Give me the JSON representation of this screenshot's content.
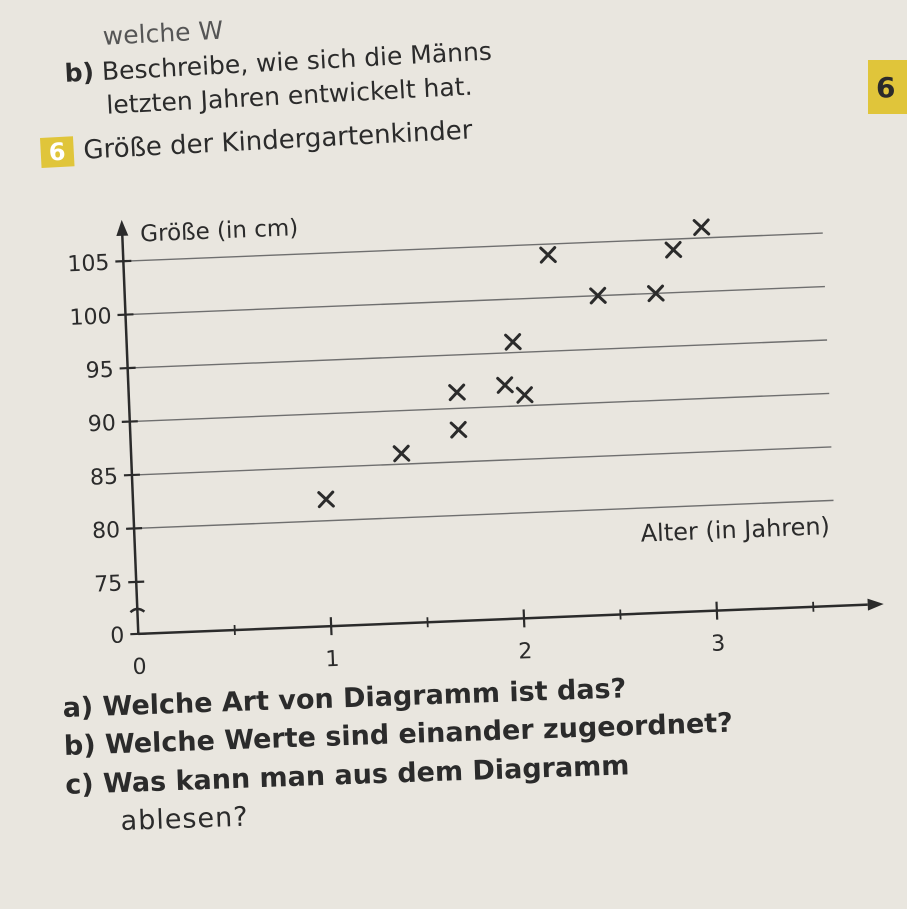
{
  "previous_task": {
    "line_top": "welche W",
    "label": "b)",
    "line1": "Beschreibe, wie sich die Männs",
    "line2": "letzten Jahren entwickelt hat."
  },
  "page_badge": "6",
  "task": {
    "number": "6",
    "title": "Größe der Kindergartenkinder"
  },
  "chart_data": {
    "type": "scatter",
    "title": "Größe der Kindergartenkinder",
    "xlabel": "Alter (in Jahren)",
    "ylabel": "Größe (in cm)",
    "x_ticks": [
      "0",
      "1",
      "2",
      "3"
    ],
    "y_ticks": [
      "0",
      "75",
      "80",
      "85",
      "90",
      "95",
      "100",
      "105"
    ],
    "y_axis_break": true,
    "xlim": [
      0,
      3.6
    ],
    "ylim": [
      75,
      107
    ],
    "marker": "×",
    "grid": "horizontal",
    "points": [
      {
        "x": 1.0,
        "y": 82
      },
      {
        "x": 1.4,
        "y": 86
      },
      {
        "x": 1.7,
        "y": 88
      },
      {
        "x": 1.7,
        "y": 91.5
      },
      {
        "x": 1.95,
        "y": 92
      },
      {
        "x": 2.05,
        "y": 91
      },
      {
        "x": 2.0,
        "y": 96
      },
      {
        "x": 2.2,
        "y": 104
      },
      {
        "x": 2.45,
        "y": 100
      },
      {
        "x": 2.75,
        "y": 100
      },
      {
        "x": 2.85,
        "y": 104
      },
      {
        "x": 3.0,
        "y": 106
      }
    ]
  },
  "questions": [
    {
      "label": "a)",
      "text": "Welche Art von Diagramm ist das?"
    },
    {
      "label": "b)",
      "text": "Welche Werte sind einander zugeordnet?"
    },
    {
      "label": "c)",
      "text": "Was kann man aus dem Diagramm"
    }
  ],
  "questions_continuation": "ablesen?"
}
